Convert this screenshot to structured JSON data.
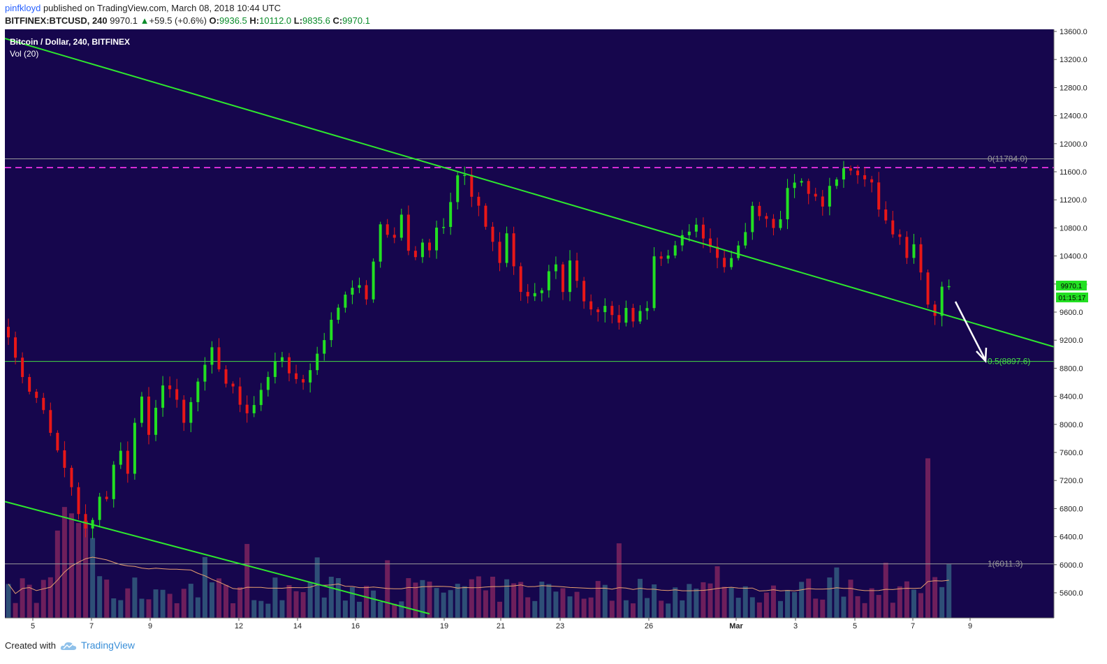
{
  "header": {
    "author": "pinfkloyd",
    "published": "published on TradingView.com, March 08, 2018 10:44 UTC",
    "symbol": "BITFINEX:BTCUSD, 240",
    "last": "9970.1",
    "change": "+59.5 (+0.6%)",
    "o_label": "O:",
    "o_value": "9936.5",
    "h_label": "H:",
    "h_value": "10112.0",
    "l_label": "L:",
    "l_value": "9835.6",
    "c_label": "C:",
    "c_value": "9970.1"
  },
  "legend": {
    "title": "Bitcoin / Dollar, 240, BITFINEX",
    "volume": "Vol (20)"
  },
  "footer": {
    "created": "Created with",
    "brand": "TradingView"
  },
  "price_tag": {
    "price": "9970.1",
    "countdown": "01:15:17"
  },
  "levels": [
    {
      "label": "0(11784.0)",
      "price": 11784,
      "color": "#9a9a9a"
    },
    {
      "label": "0.5(8897.6)",
      "price": 8897.6,
      "color": "#44dd44"
    },
    {
      "label": "1(6011.3)",
      "price": 6011.3,
      "color": "#9a9a9a"
    }
  ],
  "resistance_line": {
    "price": 11660,
    "color": "#d62cd6"
  },
  "colors": {
    "background": "#16064d",
    "up": "#22e022",
    "down": "#e81717",
    "trend": "#2ee82e",
    "vol_up": "#2e4f77",
    "vol_down": "#6e1f5c",
    "ma": "#e8a070"
  },
  "chart_data": {
    "type": "candlestick",
    "title": "Bitcoin / Dollar, 240, BITFINEX",
    "y_ticks": [
      "13600.0",
      "13200.0",
      "12800.0",
      "12400.0",
      "12000.0",
      "11600.0",
      "11200.0",
      "10800.0",
      "10400.0",
      "10000.0",
      "9600.0",
      "9200.0",
      "8800.0",
      "8400.0",
      "8000.0",
      "7600.0",
      "7200.0",
      "6800.0",
      "6400.0",
      "6000.0",
      "5600.0"
    ],
    "ylim": [
      5200,
      13600
    ],
    "x_ticks": [
      "5",
      "7",
      "9",
      "12",
      "14",
      "16",
      "19",
      "21",
      "23",
      "26",
      "Mar",
      "3",
      "5",
      "7",
      "9"
    ],
    "waypoints": [
      [
        0,
        9300
      ],
      [
        1,
        8900
      ],
      [
        3,
        8500
      ],
      [
        5,
        8200
      ],
      [
        7,
        7600
      ],
      [
        9,
        7100
      ],
      [
        10,
        6700
      ],
      [
        11,
        6500
      ],
      [
        12,
        6600
      ],
      [
        13,
        7000
      ],
      [
        14,
        6950
      ],
      [
        15,
        7400
      ],
      [
        16,
        7600
      ],
      [
        17,
        7350
      ],
      [
        18,
        8000
      ],
      [
        19,
        8400
      ],
      [
        20,
        7800
      ],
      [
        21,
        8200
      ],
      [
        22,
        8600
      ],
      [
        23,
        8500
      ],
      [
        24,
        8300
      ],
      [
        25,
        8000
      ],
      [
        26,
        8300
      ],
      [
        27,
        8600
      ],
      [
        28,
        8800
      ],
      [
        29,
        9050
      ],
      [
        30,
        8800
      ],
      [
        31,
        8600
      ],
      [
        32,
        8500
      ],
      [
        33,
        8300
      ],
      [
        34,
        8200
      ],
      [
        35,
        8300
      ],
      [
        36,
        8500
      ],
      [
        37,
        8700
      ],
      [
        38,
        8850
      ],
      [
        39,
        8950
      ],
      [
        40,
        8700
      ],
      [
        41,
        8600
      ],
      [
        42,
        8650
      ],
      [
        43,
        8800
      ],
      [
        44,
        9000
      ],
      [
        45,
        9200
      ],
      [
        46,
        9500
      ],
      [
        47,
        9700
      ],
      [
        48,
        9800
      ],
      [
        49,
        10000
      ],
      [
        50,
        10000
      ],
      [
        51,
        9800
      ],
      [
        52,
        10300
      ],
      [
        53,
        10800
      ],
      [
        54,
        10700
      ],
      [
        55,
        10700
      ],
      [
        56,
        11000
      ],
      [
        57,
        10500
      ],
      [
        58,
        10400
      ],
      [
        59,
        10600
      ],
      [
        60,
        10500
      ],
      [
        61,
        10800
      ],
      [
        62,
        10800
      ],
      [
        63,
        11200
      ],
      [
        64,
        11500
      ],
      [
        65,
        11560
      ],
      [
        66,
        11200
      ],
      [
        67,
        11100
      ],
      [
        68,
        10800
      ],
      [
        69,
        10600
      ],
      [
        70,
        10300
      ],
      [
        71,
        10700
      ],
      [
        72,
        10200
      ],
      [
        73,
        9900
      ],
      [
        74,
        9800
      ],
      [
        75,
        9900
      ],
      [
        76,
        9900
      ],
      [
        77,
        10200
      ],
      [
        78,
        10300
      ],
      [
        79,
        9900
      ],
      [
        80,
        10300
      ],
      [
        81,
        10000
      ],
      [
        82,
        9800
      ],
      [
        83,
        9600
      ],
      [
        84,
        9650
      ],
      [
        85,
        9700
      ],
      [
        86,
        9600
      ],
      [
        87,
        9500
      ],
      [
        88,
        9600
      ],
      [
        89,
        9500
      ],
      [
        90,
        9600
      ],
      [
        91,
        9700
      ],
      [
        92,
        10400
      ],
      [
        93,
        10350
      ],
      [
        94,
        10450
      ],
      [
        95,
        10500
      ],
      [
        96,
        10650
      ],
      [
        97,
        10700
      ],
      [
        98,
        10800
      ],
      [
        99,
        10600
      ],
      [
        100,
        10500
      ],
      [
        101,
        10400
      ],
      [
        102,
        10300
      ],
      [
        103,
        10400
      ],
      [
        104,
        10600
      ],
      [
        105,
        10800
      ],
      [
        106,
        11100
      ],
      [
        107,
        11000
      ],
      [
        108,
        10900
      ],
      [
        109,
        10800
      ],
      [
        110,
        10900
      ],
      [
        111,
        11400
      ],
      [
        112,
        11400
      ],
      [
        113,
        11500
      ],
      [
        114,
        11300
      ],
      [
        115,
        11200
      ],
      [
        116,
        11150
      ],
      [
        117,
        11400
      ],
      [
        118,
        11550
      ],
      [
        119,
        11600
      ],
      [
        120,
        11600
      ],
      [
        121,
        11500
      ],
      [
        122,
        11550
      ],
      [
        123,
        11400
      ],
      [
        124,
        11100
      ],
      [
        125,
        10850
      ],
      [
        126,
        10700
      ],
      [
        127,
        10650
      ],
      [
        128,
        10400
      ],
      [
        129,
        10600
      ],
      [
        130,
        10200
      ],
      [
        131,
        9700
      ],
      [
        132,
        9600
      ],
      [
        133,
        9930
      ],
      [
        134,
        9970
      ]
    ],
    "n_candles": 135,
    "trendlines": [
      {
        "from": [
          0,
          13500
        ],
        "to": [
          160,
          8780
        ]
      },
      {
        "from": [
          0,
          6900
        ],
        "to": [
          60,
          5300
        ]
      }
    ],
    "volume_label": "Vol (20)"
  }
}
